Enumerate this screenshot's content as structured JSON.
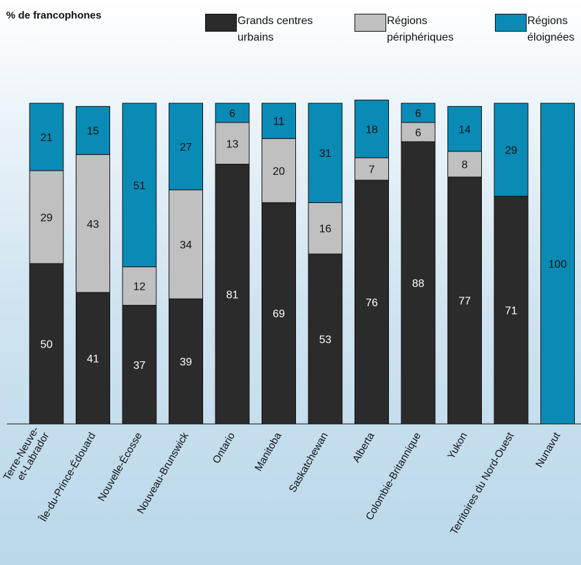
{
  "chart_data": {
    "type": "bar",
    "stacked": true,
    "ylabel": "% de francophones",
    "ylim": [
      0,
      100
    ],
    "categories": [
      "Terre-Neuve-|et-Labrador",
      "Île-du-Prince-Édouard",
      "Nouvelle-Écosse",
      "Nouveau-Brunswick",
      "Ontario",
      "Manitoba",
      "Saskatchewan",
      "Alberta",
      "Colombie-Britannique",
      "Yukon",
      "Territoires du Nord-Ouest",
      "Nunavut"
    ],
    "series": [
      {
        "name": "Grands centres urbains",
        "color": "#2b2b2b",
        "values": [
          50,
          41,
          37,
          39,
          81,
          69,
          53,
          76,
          88,
          77,
          71,
          0
        ]
      },
      {
        "name": "Régions périphériques",
        "color": "#c0c0c0",
        "values": [
          29,
          43,
          12,
          34,
          13,
          20,
          16,
          7,
          6,
          8,
          0,
          0
        ]
      },
      {
        "name": "Régions éloignées",
        "color": "#0a8bb5",
        "values": [
          21,
          15,
          51,
          27,
          6,
          11,
          31,
          18,
          6,
          14,
          29,
          100
        ]
      }
    ],
    "legend": [
      {
        "line1": "Grands centres",
        "line2": "urbains",
        "color": "#2b2b2b"
      },
      {
        "line1": "Régions",
        "line2": "périphériques",
        "color": "#c0c0c0"
      },
      {
        "line1": "Régions",
        "line2": "éloignées",
        "color": "#0a8bb5"
      }
    ],
    "legend_position": "top",
    "grid": false
  }
}
